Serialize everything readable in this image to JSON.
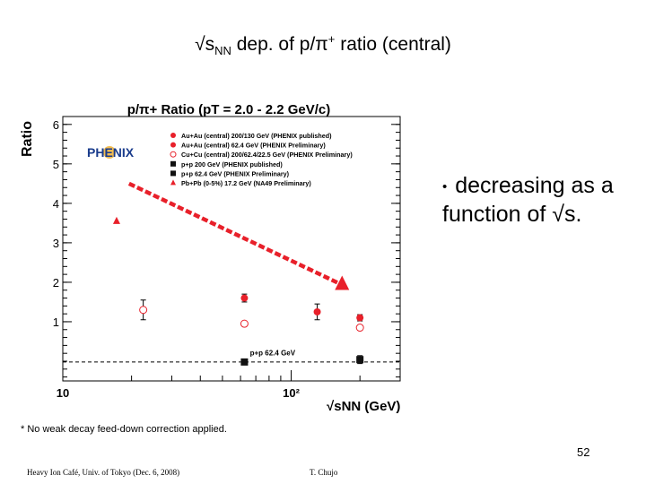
{
  "slide": {
    "title_prefix": "√s",
    "title_sub": "NN",
    "title_middle": " dep. of p/π",
    "title_sup": "+",
    "title_suffix": " ratio (central)",
    "bullet_marker": "•",
    "bullet_text": "decreasing as a function of √s.",
    "footnote": "* No weak decay feed-down correction applied.",
    "page_number": "52",
    "footer_left": "Heavy Ion Café, Univ. of Tokyo (Dec. 6, 2008)",
    "footer_right": "T. Chujo"
  },
  "chart_data": {
    "type": "scatter",
    "title": "p/π+ Ratio (pT = 2.0 - 2.2 GeV/c)",
    "ylabel": "Ratio",
    "xlabel": "√sNN (GeV)",
    "logo_text": "PHENIX",
    "x_scale": "log",
    "xlim": [
      10,
      300
    ],
    "ylim": [
      -0.5,
      6.2
    ],
    "x_tick_labels": [
      "10",
      "10²"
    ],
    "y_ticks": [
      1,
      2,
      3,
      4,
      5,
      6
    ],
    "grid": false,
    "legend_position": "top-left",
    "series": [
      {
        "name": "Au+Au (central) 200/130 GeV (PHENIX published)",
        "marker": "circle-filled",
        "color": "#e8202a",
        "points": [
          {
            "x": 130,
            "y": 1.25,
            "err": 0.2
          },
          {
            "x": 200,
            "y": 1.1,
            "err": 0.08
          }
        ]
      },
      {
        "name": "Au+Au (central) 62.4 GeV (PHENIX Preliminary)",
        "marker": "circle-filled",
        "color": "#e8202a",
        "points": [
          {
            "x": 62.4,
            "y": 1.6,
            "err": 0.1
          }
        ]
      },
      {
        "name": "Cu+Cu (central) 200/62.4/22.5 GeV (PHENIX Preliminary)",
        "marker": "circle-open",
        "color": "#e8202a",
        "points": [
          {
            "x": 22.5,
            "y": 1.3,
            "err": 0.25
          },
          {
            "x": 62.4,
            "y": 0.95,
            "err": 0
          },
          {
            "x": 200,
            "y": 0.85,
            "err": 0
          }
        ]
      },
      {
        "name": "p+p 200 GeV (PHENIX published)",
        "marker": "square-filled",
        "color": "#111111",
        "points": [
          {
            "x": 200,
            "y": 0.04,
            "err": 0.1
          }
        ]
      },
      {
        "name": "p+p 62.4 GeV (PHENIX Preliminary)",
        "marker": "square-filled",
        "color": "#111111",
        "points": [
          {
            "x": 62.4,
            "y": -0.02,
            "err": 0
          }
        ]
      },
      {
        "name": "Pb+Pb (0-5%) 17.2 GeV (NA49 Preliminary)",
        "marker": "triangle-filled",
        "color": "#e8202a",
        "points": [
          {
            "x": 17.2,
            "y": 3.55,
            "err": 0
          }
        ]
      }
    ],
    "trend_arrow": {
      "from": [
        19.5,
        4.5
      ],
      "to": [
        165,
        1.95
      ]
    },
    "reference_line": {
      "y": -0.02,
      "label": "p+p 62.4 GeV"
    },
    "annotation_big_triangle": {
      "x": 167,
      "y": 1.95
    }
  }
}
